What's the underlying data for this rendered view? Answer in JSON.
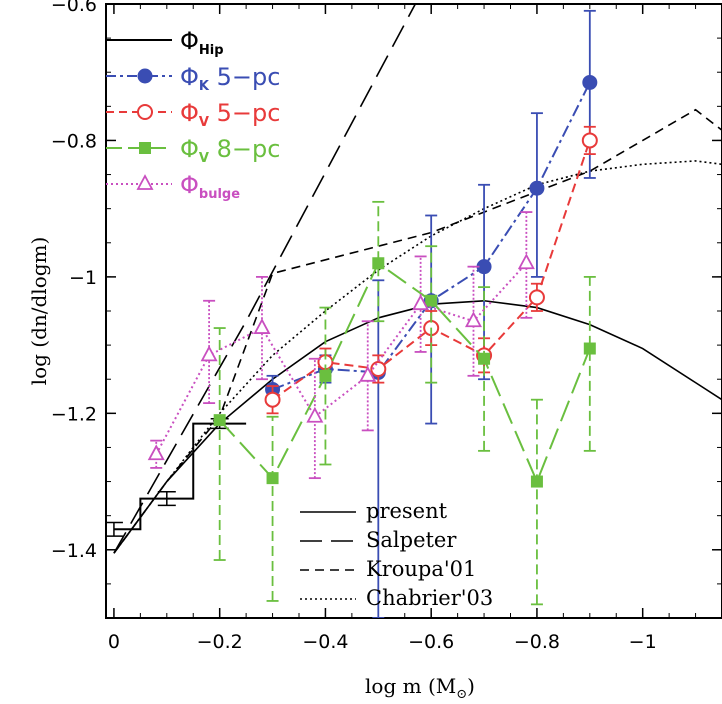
{
  "chart_data": {
    "type": "line",
    "xlabel": "log m (M",
    "xlabel_sub": "⊙",
    "xlabel_close": ")",
    "ylabel": "log (dn/dlogm)",
    "xlim": [
      0.015,
      -1.15
    ],
    "ylim": [
      -1.5,
      -0.6
    ],
    "xticks": [
      0,
      -0.2,
      -0.4,
      -0.6,
      -0.8,
      -1
    ],
    "xtick_labels": [
      "0",
      "−0.2",
      "−0.4",
      "−0.6",
      "−0.8",
      "−1"
    ],
    "yticks": [
      -0.6,
      -0.8,
      -1,
      -1.2,
      -1.4
    ],
    "ytick_labels": [
      "−0.6",
      "−0.8",
      "−1",
      "−1.2",
      "−1.4"
    ],
    "legend_top": [
      {
        "symbol": "Φ",
        "sub": "Hip",
        "suffix": "",
        "color": "#000000",
        "style": "solid",
        "marker": "none"
      },
      {
        "symbol": "Φ",
        "sub": "K",
        "suffix": " 5−pc",
        "color": "#3a4db3",
        "style": "dashdot",
        "marker": "filled-circle"
      },
      {
        "symbol": "Φ",
        "sub": "V",
        "suffix": " 5−pc",
        "color": "#e83a3a",
        "style": "dashed",
        "marker": "open-circle"
      },
      {
        "symbol": "Φ",
        "sub": "V",
        "suffix": " 8−pc",
        "color": "#6abf3f",
        "style": "longdash",
        "marker": "filled-square"
      },
      {
        "symbol": "Φ",
        "sub": "bulge",
        "suffix": "",
        "color": "#c94fc0",
        "style": "dotted",
        "marker": "open-triangle"
      }
    ],
    "legend_bottom": [
      "present",
      "Salpeter",
      "Kroupa'01",
      "Chabrier'03"
    ],
    "series": [
      {
        "name": "ΦHip",
        "color": "#000000",
        "kind": "step",
        "steps": [
          {
            "x0": 0.0,
            "x1": -0.05,
            "y": -1.37
          },
          {
            "x0": -0.05,
            "x1": -0.15,
            "y": -1.325
          },
          {
            "x0": -0.15,
            "x1": -0.25,
            "y": -1.215
          }
        ],
        "errors": [
          {
            "x": 0.0,
            "y": -1.37,
            "lo": -1.38,
            "hi": -1.36
          },
          {
            "x": -0.1,
            "y": -1.325,
            "lo": -1.335,
            "hi": -1.315
          },
          {
            "x": -0.2,
            "y": -1.215,
            "lo": -1.222,
            "hi": -1.208
          }
        ]
      },
      {
        "name": "ΦK 5-pc",
        "color": "#3a4db3",
        "kind": "points",
        "marker": "filled-circle",
        "dash": "12,4,3,4",
        "x": [
          -0.3,
          -0.4,
          -0.5,
          -0.6,
          -0.7,
          -0.8,
          -0.9
        ],
        "y": [
          -1.165,
          -1.135,
          -1.14,
          -1.035,
          -0.985,
          -0.87,
          -0.715
        ],
        "y_lo": [
          -1.185,
          -1.155,
          -1.5,
          -1.215,
          -1.15,
          -1.0,
          -0.855
        ],
        "y_hi": [
          -1.145,
          -1.115,
          -1.005,
          -0.91,
          -0.865,
          -0.76,
          -0.61
        ]
      },
      {
        "name": "ΦV 5-pc",
        "color": "#e83a3a",
        "kind": "points",
        "marker": "open-circle",
        "dash": "9,5",
        "x": [
          -0.3,
          -0.4,
          -0.5,
          -0.6,
          -0.7,
          -0.8,
          -0.9
        ],
        "y": [
          -1.18,
          -1.125,
          -1.135,
          -1.075,
          -1.115,
          -1.03,
          -0.8
        ],
        "y_lo": [
          -1.2,
          -1.145,
          -1.155,
          -1.1,
          -1.14,
          -1.05,
          -0.82
        ],
        "y_hi": [
          -1.16,
          -1.105,
          -1.115,
          -1.05,
          -1.09,
          -1.01,
          -0.78
        ]
      },
      {
        "name": "ΦV 8-pc",
        "color": "#6abf3f",
        "kind": "points",
        "marker": "filled-square",
        "dash": "22,8",
        "x": [
          -0.2,
          -0.3,
          -0.4,
          -0.5,
          -0.6,
          -0.7,
          -0.8,
          -0.9
        ],
        "y": [
          -1.21,
          -1.295,
          -1.145,
          -0.98,
          -1.035,
          -1.12,
          -1.3,
          -1.105
        ],
        "y_lo": [
          -1.415,
          -1.475,
          -1.275,
          -1.065,
          -1.155,
          -1.255,
          -1.48,
          -1.255
        ],
        "y_hi": [
          -1.075,
          -1.205,
          -1.045,
          -0.89,
          -0.955,
          -1.015,
          -1.18,
          -1.0
        ]
      },
      {
        "name": "Φbulge",
        "color": "#c94fc0",
        "kind": "points",
        "marker": "open-triangle",
        "dash": "2,3",
        "x": [
          -0.08,
          -0.18,
          -0.28,
          -0.38,
          -0.48,
          -0.58,
          -0.68,
          -0.78
        ],
        "y": [
          -1.26,
          -1.115,
          -1.075,
          -1.205,
          -1.145,
          -1.04,
          -1.065,
          -0.98
        ],
        "y_lo": [
          -1.28,
          -1.185,
          -1.15,
          -1.295,
          -1.225,
          -1.11,
          -1.145,
          -1.06
        ],
        "y_hi": [
          -1.24,
          -1.035,
          -1.0,
          -1.12,
          -1.065,
          -0.97,
          -0.985,
          -0.905
        ]
      },
      {
        "name": "present",
        "color": "#000000",
        "kind": "curve",
        "dash": "",
        "x": [
          0.0,
          -0.1,
          -0.2,
          -0.3,
          -0.4,
          -0.5,
          -0.6,
          -0.7,
          -0.8,
          -0.9,
          -1.0,
          -1.1,
          -1.15
        ],
        "y": [
          -1.405,
          -1.3,
          -1.215,
          -1.15,
          -1.095,
          -1.06,
          -1.04,
          -1.035,
          -1.045,
          -1.07,
          -1.105,
          -1.155,
          -1.18
        ]
      },
      {
        "name": "Salpeter",
        "color": "#000000",
        "kind": "curve",
        "dash": "24,10",
        "x": [
          0.0,
          -0.25,
          -0.57
        ],
        "y": [
          -1.405,
          -1.065,
          -0.6
        ]
      },
      {
        "name": "Kroupa'01",
        "color": "#000000",
        "kind": "curve",
        "dash": "9,6",
        "x": [
          0.0,
          -0.1,
          -0.2,
          -0.3,
          -0.6,
          -0.9,
          -1.1,
          -1.15
        ],
        "y": [
          -1.405,
          -1.3,
          -1.205,
          -0.995,
          -0.935,
          -0.845,
          -0.755,
          -0.785
        ]
      },
      {
        "name": "Chabrier'03",
        "color": "#000000",
        "kind": "curve",
        "dash": "2,3",
        "x": [
          0.0,
          -0.1,
          -0.2,
          -0.3,
          -0.4,
          -0.5,
          -0.6,
          -0.7,
          -0.8,
          -0.9,
          -1.0,
          -1.1,
          -1.15
        ],
        "y": [
          -1.405,
          -1.3,
          -1.2,
          -1.115,
          -1.05,
          -0.99,
          -0.94,
          -0.9,
          -0.865,
          -0.845,
          -0.835,
          -0.83,
          -0.835
        ]
      }
    ]
  }
}
